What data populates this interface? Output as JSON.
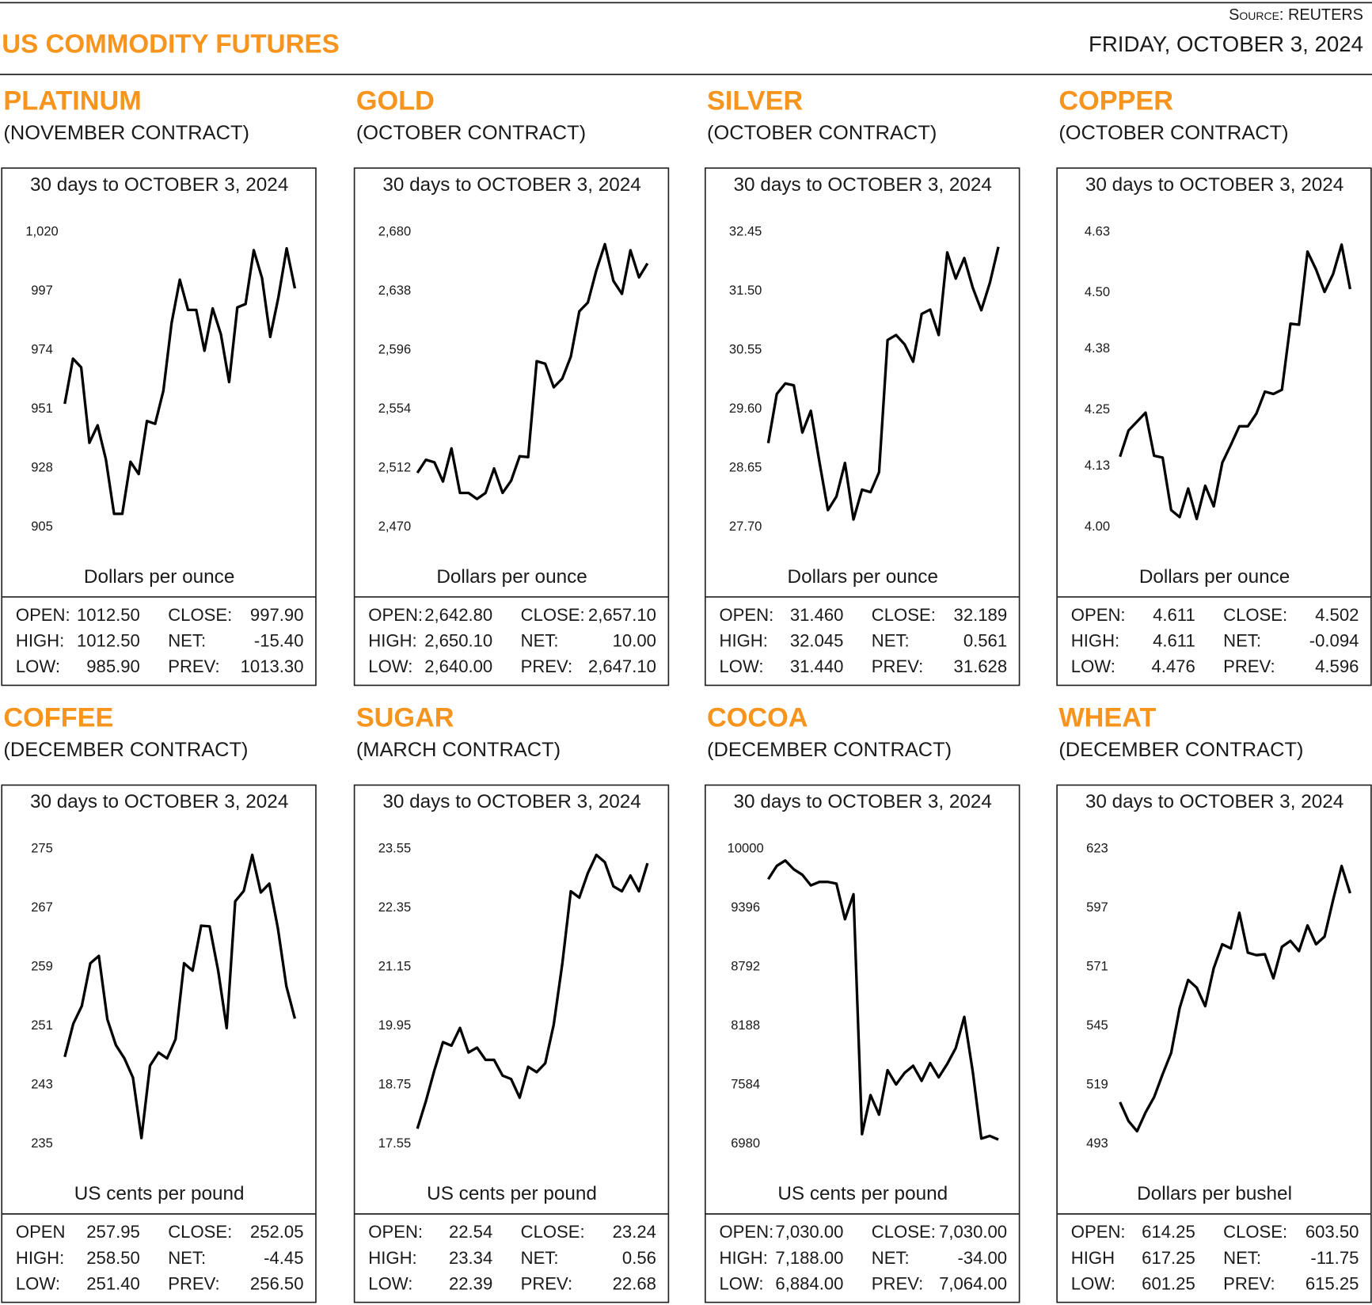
{
  "header": {
    "source": "Source: REUTERS",
    "title": "US COMMODITY FUTURES",
    "date": "FRIDAY, OCTOBER 3, 2024"
  },
  "chart_data": [
    {
      "type": "line",
      "title": "PLATINUM",
      "subtitle": "(NOVEMBER CONTRACT)",
      "period": "30 days to OCTOBER 3, 2024",
      "y_label": "Dollars per ounce",
      "color": "#000000",
      "ylim": [
        905,
        1020
      ],
      "yticks": [
        905,
        928,
        951,
        974,
        997,
        {
          "value": 1020,
          "label": "1,020"
        }
      ],
      "values": [
        953.0,
        970.6,
        967.2,
        937.8,
        944.6,
        931.4,
        910.1,
        910.1,
        930.4,
        925.6,
        946.3,
        945.2,
        958.1,
        984.5,
        1001.4,
        989.6,
        989.6,
        973.7,
        990.2,
        980.1,
        961.5,
        990.6,
        991.9,
        1012.9,
        1002.1,
        979.1,
        994.6,
        1013.6,
        998.0
      ],
      "stats": [
        [
          "OPEN:",
          "1012.50",
          "CLOSE:",
          "997.90"
        ],
        [
          "HIGH:",
          "1012.50",
          "NET:",
          "-15.40"
        ],
        [
          "LOW:",
          "985.90",
          "PREV:",
          "1013.30"
        ]
      ]
    },
    {
      "type": "line",
      "title": "GOLD",
      "subtitle": "(OCTOBER CONTRACT)",
      "period": "30 days to OCTOBER 3, 2024",
      "y_label": "Dollars per ounce",
      "color": "#000000",
      "ylim": [
        2470,
        2680
      ],
      "yticks": [
        {
          "value": 2470,
          "label": "2,470"
        },
        {
          "value": 2512,
          "label": "2,512"
        },
        {
          "value": 2554,
          "label": "2,554"
        },
        {
          "value": 2596,
          "label": "2,596"
        },
        {
          "value": 2638,
          "label": "2,638"
        },
        {
          "value": 2680,
          "label": "2,680"
        }
      ],
      "values": [
        2508.5,
        2517.8,
        2516.0,
        2502.3,
        2525.9,
        2494.2,
        2494.2,
        2489.9,
        2494.2,
        2511.6,
        2494.2,
        2502.9,
        2520.3,
        2519.7,
        2588.0,
        2586.2,
        2569.4,
        2575.6,
        2591.2,
        2623.5,
        2629.7,
        2652.7,
        2671.3,
        2645.2,
        2635.9,
        2667.0,
        2647.7,
        2657.6
      ],
      "stats": [
        [
          "OPEN:",
          "2,642.80",
          "CLOSE:",
          "2,657.10"
        ],
        [
          "HIGH:",
          "2,650.10",
          "NET:",
          "10.00"
        ],
        [
          "LOW:",
          "2,640.00",
          "PREV:",
          "2,647.10"
        ]
      ]
    },
    {
      "type": "line",
      "title": "SILVER",
      "subtitle": "(OCTOBER CONTRACT)",
      "period": "30 days to OCTOBER 3, 2024",
      "y_label": "Dollars per ounce",
      "color": "#000000",
      "ylim": [
        27.7,
        32.45
      ],
      "yticks": [
        {
          "value": 27.7,
          "label": "27.70"
        },
        28.65,
        {
          "value": 29.6,
          "label": "29.60"
        },
        30.55,
        {
          "value": 31.5,
          "label": "31.50"
        },
        32.45
      ],
      "values": [
        29.05,
        29.84,
        30.01,
        29.98,
        29.22,
        29.57,
        28.75,
        27.97,
        28.19,
        28.73,
        27.82,
        28.3,
        28.26,
        28.58,
        30.71,
        30.79,
        30.64,
        30.36,
        31.13,
        31.2,
        30.79,
        32.12,
        31.7,
        32.03,
        31.55,
        31.19,
        31.63,
        32.21
      ],
      "stats": [
        [
          "OPEN:",
          "31.460",
          "CLOSE:",
          "32.189"
        ],
        [
          "HIGH:",
          "32.045",
          "NET:",
          "0.561"
        ],
        [
          "LOW:",
          "31.440",
          "PREV:",
          "31.628"
        ]
      ]
    },
    {
      "type": "line",
      "title": "COPPER",
      "subtitle": "(OCTOBER CONTRACT)",
      "period": "30 days to OCTOBER 3, 2024",
      "y_label": "Dollars per ounce",
      "color": "#000000",
      "ylim": [
        4.0,
        4.63
      ],
      "yticks": [
        {
          "value": 4.0,
          "label": "4.00"
        },
        4.13,
        4.25,
        4.38,
        {
          "value": 4.5,
          "label": "4.50"
        },
        4.63
      ],
      "values": [
        4.15,
        4.206,
        4.225,
        4.244,
        4.152,
        4.148,
        4.036,
        4.021,
        4.082,
        4.017,
        4.088,
        4.044,
        4.137,
        4.175,
        4.215,
        4.215,
        4.242,
        4.289,
        4.284,
        4.293,
        4.434,
        4.432,
        4.588,
        4.55,
        4.502,
        4.54,
        4.603,
        4.508
      ],
      "stats": [
        [
          "OPEN:",
          "4.611",
          "CLOSE:",
          "4.502"
        ],
        [
          "HIGH:",
          "4.611",
          "NET:",
          "-0.094"
        ],
        [
          "LOW:",
          "4.476",
          "PREV:",
          "4.596"
        ]
      ]
    },
    {
      "type": "line",
      "title": "COFFEE",
      "subtitle": "(DECEMBER CONTRACT)",
      "period": "30 days to OCTOBER 3, 2024",
      "y_label": "US cents per pound",
      "color": "#000000",
      "ylim": [
        235,
        275
      ],
      "yticks": [
        235,
        243,
        251,
        259,
        267,
        275
      ],
      "values": [
        246.8,
        251.3,
        253.7,
        259.5,
        260.5,
        251.9,
        248.4,
        246.6,
        244.0,
        235.8,
        245.6,
        247.4,
        246.6,
        249.2,
        259.5,
        258.5,
        264.6,
        264.5,
        258.5,
        250.7,
        267.9,
        269.3,
        274.2,
        269.1,
        270.3,
        264.3,
        256.4,
        252.0
      ],
      "stats": [
        [
          "OPEN",
          "257.95",
          "CLOSE:",
          "252.05"
        ],
        [
          "HIGH:",
          "258.50",
          "NET:",
          "-4.45"
        ],
        [
          "LOW:",
          "251.40",
          "PREV:",
          "256.50"
        ]
      ]
    },
    {
      "type": "line",
      "title": "SUGAR",
      "subtitle": "(MARCH CONTRACT)",
      "period": "30 days to OCTOBER 3, 2024",
      "y_label": "US cents per pound",
      "color": "#000000",
      "ylim": [
        17.55,
        23.55
      ],
      "yticks": [
        17.55,
        18.75,
        19.95,
        21.15,
        22.35,
        23.55
      ],
      "values": [
        17.86,
        18.42,
        19.05,
        19.62,
        19.55,
        19.91,
        19.41,
        19.51,
        19.26,
        19.26,
        18.94,
        18.87,
        18.49,
        19.12,
        19.01,
        19.19,
        19.98,
        21.21,
        22.69,
        22.56,
        23.06,
        23.43,
        23.28,
        22.79,
        22.69,
        23.01,
        22.69,
        23.26
      ],
      "stats": [
        [
          "OPEN:",
          "22.54",
          "CLOSE:",
          "23.24"
        ],
        [
          "HIGH:",
          "23.34",
          "NET:",
          "0.56"
        ],
        [
          "LOW:",
          "22.39",
          "PREV:",
          "22.68"
        ]
      ]
    },
    {
      "type": "line",
      "title": "COCOA",
      "subtitle": "(DECEMBER CONTRACT)",
      "period": "30 days to OCTOBER 3, 2024",
      "y_label": "US cents per pound",
      "color": "#000000",
      "ylim": [
        6980,
        10000
      ],
      "yticks": [
        6980,
        7584,
        8188,
        8792,
        9396,
        10000
      ],
      "values": [
        9691,
        9827,
        9882,
        9791,
        9736,
        9627,
        9663,
        9663,
        9645,
        9281,
        9536,
        7080,
        7480,
        7280,
        7735,
        7589,
        7708,
        7780,
        7626,
        7808,
        7662,
        7799,
        7962,
        8281,
        7717,
        7035,
        7062,
        7025
      ],
      "stats": [
        [
          "OPEN:",
          "7,030.00",
          "CLOSE:",
          "7,030.00"
        ],
        [
          "HIGH:",
          "7,188.00",
          "NET:",
          "-34.00"
        ],
        [
          "LOW:",
          "6,884.00",
          "PREV:",
          "7,064.00"
        ]
      ]
    },
    {
      "type": "line",
      "title": "WHEAT",
      "subtitle": "(DECEMBER CONTRACT)",
      "period": "30 days to OCTOBER 3, 2024",
      "y_label": "Dollars per bushel",
      "color": "#000000",
      "ylim": [
        493,
        623
      ],
      "yticks": [
        493,
        519,
        545,
        571,
        597,
        623
      ],
      "values": [
        511.4,
        503.1,
        498.6,
        506.9,
        513.6,
        523.7,
        533.1,
        552.9,
        565.3,
        561.9,
        553.7,
        570.5,
        581.0,
        579.2,
        594.9,
        577.3,
        576.2,
        576.6,
        566.0,
        579.9,
        582.5,
        578.0,
        589.3,
        581.0,
        584.4,
        600.5,
        615.5,
        603.5
      ],
      "stats": [
        [
          "OPEN:",
          "614.25",
          "CLOSE:",
          "603.50"
        ],
        [
          "HIGH",
          "617.25",
          "NET:",
          "-11.75"
        ],
        [
          "LOW:",
          "601.25",
          "PREV:",
          "615.25"
        ]
      ]
    }
  ]
}
